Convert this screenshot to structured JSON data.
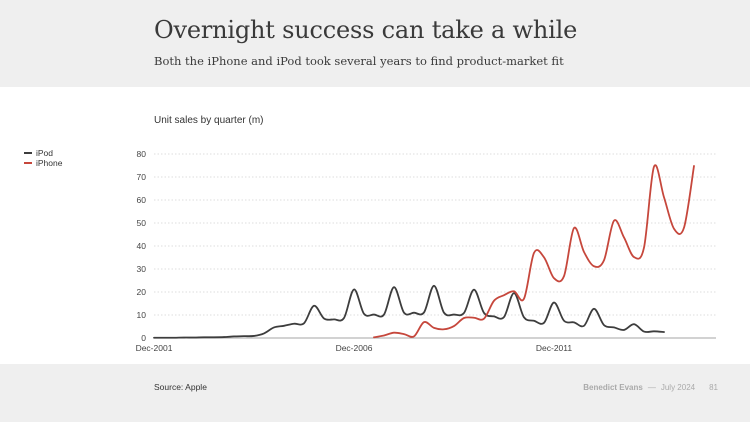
{
  "header": {
    "title": "Overnight success can take a while",
    "subtitle": "Both the iPhone and iPod took several years to find product-market fit"
  },
  "footer": {
    "source": "Source: Apple",
    "author": "Benedict Evans",
    "separator": "—",
    "date": "July 2024",
    "page": "81"
  },
  "colors": {
    "ipod": "#3d3d3d",
    "iphone": "#c6473c",
    "grid": "#d4d4d4",
    "axis": "#888888"
  },
  "chart_data": {
    "type": "line",
    "title": "Unit sales by quarter (m)",
    "xlabel": "",
    "ylabel": "",
    "ylim": [
      0,
      80
    ],
    "yticks": [
      0,
      10,
      20,
      30,
      40,
      50,
      60,
      70,
      80
    ],
    "xtick_labels": [
      {
        "index": 0,
        "label": "Dec-2001"
      },
      {
        "index": 20,
        "label": "Dec-2006"
      },
      {
        "index": 40,
        "label": "Dec-2011"
      }
    ],
    "x_start": "Dec-2001",
    "x_step": "quarter",
    "grid": true,
    "legend": "left",
    "series": [
      {
        "name": "iPod",
        "start_index": 0,
        "values": [
          0.1,
          0.1,
          0.1,
          0.2,
          0.2,
          0.3,
          0.3,
          0.4,
          0.7,
          0.8,
          0.9,
          2.0,
          4.6,
          5.3,
          6.2,
          6.4,
          14.0,
          8.5,
          8.1,
          8.7,
          21.1,
          10.5,
          10.2,
          10.2,
          22.1,
          11.0,
          11.0,
          11.1,
          22.7,
          11.0,
          10.2,
          10.9,
          21.0,
          10.9,
          9.4,
          9.1,
          19.5,
          9.0,
          7.5,
          6.6,
          15.4,
          7.5,
          6.8,
          5.3,
          12.7,
          5.6,
          4.6,
          3.5,
          6.0,
          2.8,
          2.9,
          2.6
        ]
      },
      {
        "name": "iPhone",
        "start_index": 22,
        "values": [
          0.3,
          1.1,
          2.3,
          1.7,
          0.7,
          6.9,
          4.4,
          3.8,
          5.2,
          8.7,
          8.8,
          8.4,
          16.2,
          18.6,
          20.3,
          17.1,
          37.0,
          35.1,
          26.0,
          26.9,
          47.8,
          37.4,
          31.2,
          33.8,
          51.0,
          43.7,
          35.2,
          39.3,
          74.5,
          61.2,
          47.5,
          48.0,
          74.8
        ]
      }
    ]
  }
}
